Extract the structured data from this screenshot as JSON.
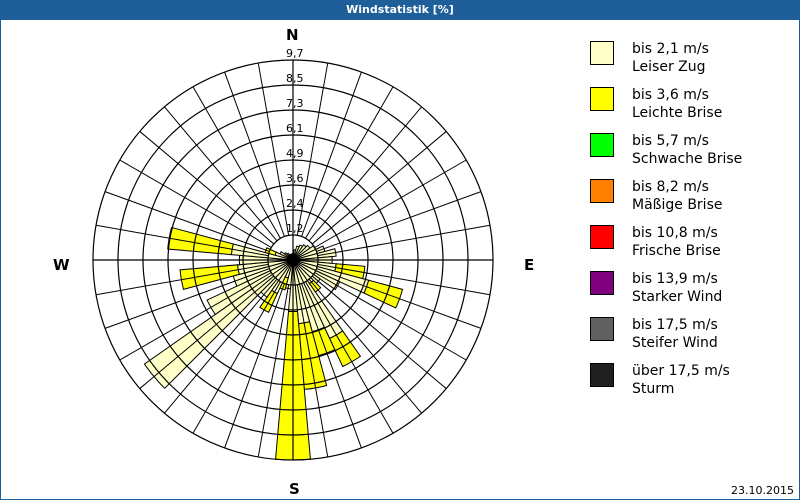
{
  "header": {
    "title": "Windstatistik [%]"
  },
  "directions": {
    "n": "N",
    "e": "E",
    "s": "S",
    "w": "W"
  },
  "footer": {
    "date": "23.10.2015"
  },
  "legend": [
    {
      "speed": "bis 2,1 m/s",
      "name": "Leiser Zug",
      "color": "#ffffc8"
    },
    {
      "speed": "bis 3,6 m/s",
      "name": "Leichte Brise",
      "color": "#ffff00"
    },
    {
      "speed": "bis 5,7 m/s",
      "name": "Schwache Brise",
      "color": "#00ff00"
    },
    {
      "speed": "bis 8,2 m/s",
      "name": "Mäßige Brise",
      "color": "#ff8000"
    },
    {
      "speed": "bis 10,8 m/s",
      "name": "Frische Brise",
      "color": "#ff0000"
    },
    {
      "speed": "bis 13,9 m/s",
      "name": "Starker Wind",
      "color": "#800080"
    },
    {
      "speed": "bis 17,5 m/s",
      "name": "Steifer Wind",
      "color": "#606060"
    },
    {
      "speed": "über 17,5 m/s",
      "name": "Sturm",
      "color": "#202020"
    }
  ],
  "chart_data": {
    "type": "windrose",
    "title": "Windstatistik [%]",
    "ring_labels": [
      "1,2",
      "2,4",
      "3,6",
      "4,9",
      "6,1",
      "7,3",
      "8,5",
      "9,7"
    ],
    "rmax": 9.7,
    "sector_width_deg": 10,
    "series_names": [
      "Leiser Zug",
      "Leichte Brise"
    ],
    "sectors": [
      {
        "dir": 0,
        "values": [
          0.3,
          0
        ]
      },
      {
        "dir": 10,
        "values": [
          0.5,
          0
        ]
      },
      {
        "dir": 20,
        "values": [
          0.7,
          0
        ]
      },
      {
        "dir": 30,
        "values": [
          0.8,
          0
        ]
      },
      {
        "dir": 40,
        "values": [
          0.9,
          0
        ]
      },
      {
        "dir": 50,
        "values": [
          1.0,
          0
        ]
      },
      {
        "dir": 60,
        "values": [
          1.2,
          0
        ]
      },
      {
        "dir": 70,
        "values": [
          1.6,
          0
        ]
      },
      {
        "dir": 80,
        "values": [
          2.1,
          0
        ]
      },
      {
        "dir": 90,
        "values": [
          1.9,
          0
        ]
      },
      {
        "dir": 100,
        "values": [
          2.1,
          1.4
        ]
      },
      {
        "dir": 110,
        "values": [
          3.8,
          1.7
        ]
      },
      {
        "dir": 120,
        "values": [
          2.5,
          0
        ]
      },
      {
        "dir": 130,
        "values": [
          1.6,
          0
        ]
      },
      {
        "dir": 140,
        "values": [
          1.4,
          0.5
        ]
      },
      {
        "dir": 150,
        "values": [
          4.2,
          1.5
        ]
      },
      {
        "dir": 160,
        "values": [
          3.6,
          1.2
        ]
      },
      {
        "dir": 170,
        "values": [
          3.1,
          3.2
        ]
      },
      {
        "dir": 180,
        "values": [
          2.5,
          7.2
        ]
      },
      {
        "dir": 190,
        "values": [
          1.4,
          0
        ]
      },
      {
        "dir": 200,
        "values": [
          0.9,
          0.6
        ]
      },
      {
        "dir": 210,
        "values": [
          1.8,
          1.0
        ]
      },
      {
        "dir": 220,
        "values": [
          2.2,
          0
        ]
      },
      {
        "dir": 230,
        "values": [
          8.8,
          0
        ]
      },
      {
        "dir": 240,
        "values": [
          4.6,
          0
        ]
      },
      {
        "dir": 250,
        "values": [
          3.0,
          0
        ]
      },
      {
        "dir": 260,
        "values": [
          2.7,
          2.8
        ]
      },
      {
        "dir": 270,
        "values": [
          2.6,
          0
        ]
      },
      {
        "dir": 280,
        "values": [
          3.0,
          3.1
        ]
      },
      {
        "dir": 290,
        "values": [
          0.9,
          0.5
        ]
      },
      {
        "dir": 300,
        "values": [
          0.7,
          0
        ]
      },
      {
        "dir": 310,
        "values": [
          0.5,
          0
        ]
      },
      {
        "dir": 320,
        "values": [
          0.4,
          0
        ]
      },
      {
        "dir": 330,
        "values": [
          0.3,
          0
        ]
      },
      {
        "dir": 340,
        "values": [
          0.3,
          0
        ]
      },
      {
        "dir": 350,
        "values": [
          0.3,
          0
        ]
      }
    ]
  }
}
